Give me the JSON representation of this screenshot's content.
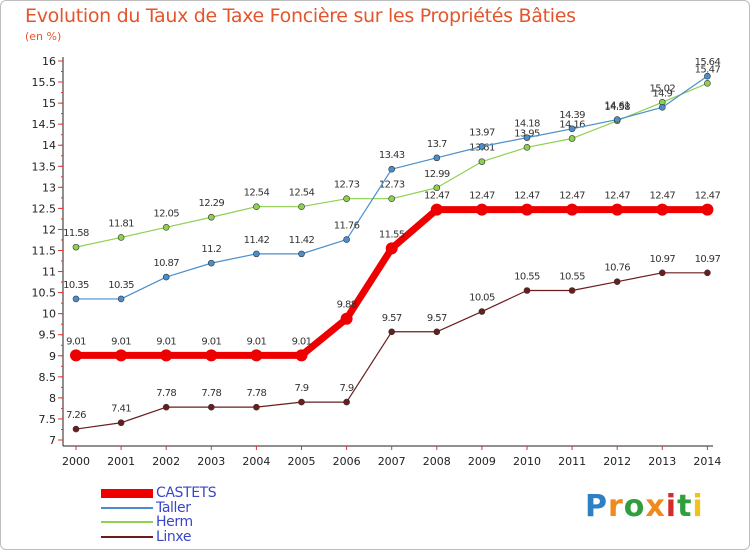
{
  "header": {
    "title": "Evolution du Taux de Taxe Foncière sur les Propriétés Bâties",
    "unit": "(en %)"
  },
  "chart_data": {
    "type": "line",
    "title": "Evolution du Taux de Taxe Foncière sur les Propriétés Bâties",
    "ylabel": "(en %)",
    "xlabel": "",
    "ylim": [
      7,
      16
    ],
    "grid": false,
    "categories": [
      "2000",
      "2001",
      "2002",
      "2003",
      "2004",
      "2005",
      "2006",
      "2007",
      "2008",
      "2009",
      "2010",
      "2011",
      "2012",
      "2013",
      "2014"
    ],
    "y_ticks": [
      "7",
      "7.5",
      "8",
      "8.5",
      "9",
      "9.5",
      "10",
      "10.5",
      "11",
      "11.5",
      "12",
      "12.5",
      "13",
      "13.5",
      "14",
      "14.5",
      "15",
      "15.5",
      "16"
    ],
    "series": [
      {
        "name": "Linxe",
        "color": "#6b1d1d",
        "width": 1.2,
        "values": [
          7.26,
          7.41,
          7.78,
          7.78,
          7.78,
          7.9,
          7.9,
          9.57,
          9.57,
          10.05,
          10.55,
          10.55,
          10.76,
          10.97,
          10.97
        ],
        "labels": [
          "7.26",
          "7.41",
          "7.78",
          "7.78",
          "7.78",
          "7.9",
          "7.9",
          "9.57",
          "9.57",
          "10.05",
          "10.55",
          "10.55",
          "10.76",
          "10.97",
          "10.97"
        ]
      },
      {
        "name": "Herm",
        "color": "#8fd14f",
        "width": 1.2,
        "values": [
          11.58,
          11.81,
          12.05,
          12.29,
          12.54,
          12.54,
          12.73,
          12.73,
          12.99,
          13.61,
          13.95,
          14.16,
          14.58,
          15.02,
          15.47
        ],
        "labels": [
          "11.58",
          "11.81",
          "12.05",
          "12.29",
          "12.54",
          "12.54",
          "12.73",
          "12.73",
          "12.99",
          "13.61",
          "13.95",
          "14.16",
          "14.58",
          "15.02",
          "15.47"
        ]
      },
      {
        "name": "Taller",
        "color": "#4a8fcc",
        "width": 1.2,
        "values": [
          10.35,
          10.35,
          10.87,
          11.2,
          11.42,
          11.42,
          11.76,
          13.43,
          13.7,
          13.97,
          14.18,
          14.39,
          14.61,
          14.9,
          15.64
        ],
        "labels": [
          "10.35",
          "10.35",
          "10.87",
          "11.2",
          "11.42",
          "11.42",
          "11.76",
          "13.43",
          "13.7",
          "13.97",
          "14.18",
          "14.39",
          "14.61",
          "14.9",
          "15.64"
        ]
      },
      {
        "name": "CASTETS",
        "color": "#ee0000",
        "width": 7,
        "values": [
          9.01,
          9.01,
          9.01,
          9.01,
          9.01,
          9.01,
          9.88,
          11.55,
          12.47,
          12.47,
          12.47,
          12.47,
          12.47,
          12.47,
          12.47
        ],
        "labels": [
          "9.01",
          "9.01",
          "9.01",
          "9.01",
          "9.01",
          "9.01",
          "9.88",
          "11.55",
          "12.47",
          "12.47",
          "12.47",
          "12.47",
          "12.47",
          "12.47",
          "12.47"
        ]
      }
    ],
    "legend_order": [
      "CASTETS",
      "Taller",
      "Herm",
      "Linxe"
    ],
    "legend_position": "bottom-left"
  },
  "logo": {
    "letters": [
      "P",
      "r",
      "o",
      "x",
      "i",
      "t",
      "i"
    ],
    "colors": [
      "#2f7fc4",
      "#f08a1c",
      "#2f9e3c",
      "#f08a1c",
      "#d22d2d",
      "#2f9e3c",
      "#f0c21c"
    ]
  }
}
